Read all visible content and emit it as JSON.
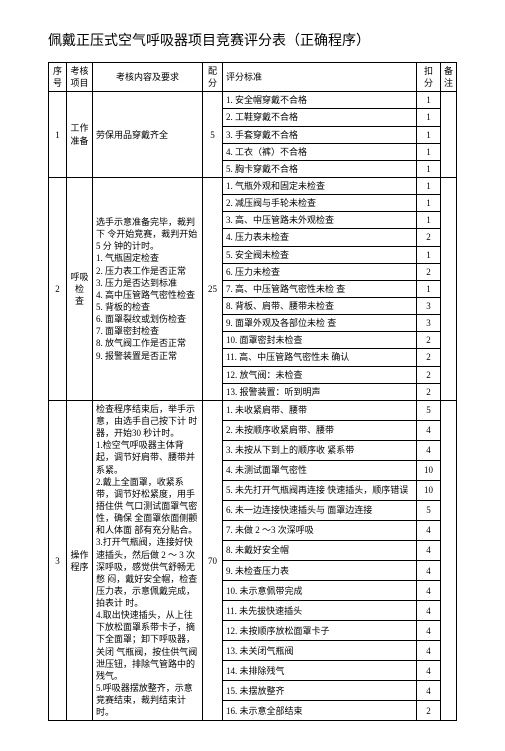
{
  "title": "佩戴正压式空气呼吸器项目竞赛评分表（正确程序）",
  "headers": {
    "seq": "序号",
    "item": "考核 项目",
    "req": "考核内容及要求",
    "score": "配 分",
    "std": "评分标准",
    "ded": "扣 分",
    "note": "备 注"
  },
  "section1": {
    "seq": "1",
    "item": "工作 准备",
    "req": "劳保用品穿戴齐全",
    "score": "5",
    "rows": [
      {
        "std": "1. 安全帽穿戴不合格",
        "ded": "1"
      },
      {
        "std": "2. 工鞋穿戴不合格",
        "ded": "1"
      },
      {
        "std": "3. 手套穿戴不合格",
        "ded": "1"
      },
      {
        "std": "4. 工衣（裤）不合格",
        "ded": "1"
      },
      {
        "std": "5. 胸卡穿戴不合格",
        "ded": "1"
      }
    ]
  },
  "section2": {
    "seq": "2",
    "item": "呼吸 检 查",
    "req": "选手示意准备完毕，裁判下 令开始竞赛，裁判开始 5 分 钟的计时。\n1. 气瓶固定检查\n2. 压力表工作是否正常\n3. 压力是否达到标准\n4. 高中压管路气密性检查\n5. 背板的检查\n6. 面罩裂纹或划伤检查\n7. 面罩密封检查\n8. 放气阀工作是否正常\n9. 报警装置是否正常",
    "score": "25",
    "rows": [
      {
        "std": "1. 气瓶外观和固定未检查",
        "ded": "1"
      },
      {
        "std": "2. 减压阀与手轮未检查",
        "ded": "1"
      },
      {
        "std": "3. 高、中压管路未外观检查",
        "ded": "1"
      },
      {
        "std": "4. 压力表未检查",
        "ded": "2"
      },
      {
        "std": "5. 安全阀未检查",
        "ded": "1"
      },
      {
        "std": "6. 压力未检查",
        "ded": "2"
      },
      {
        "std": "7. 高、中压管路气密性未检 查",
        "ded": "1"
      },
      {
        "std": "8. 背板、肩带、腰带未检查",
        "ded": "3"
      },
      {
        "std": "9. 面罩外观及各部位未检 查",
        "ded": "3"
      },
      {
        "std": "10. 面罩密封未检查",
        "ded": "2"
      },
      {
        "std": "11. 高、中压管路气密性未 确认",
        "ded": "2"
      },
      {
        "std": "12. 放气阀：未检查",
        "ded": "2"
      },
      {
        "std": "13. 报警装置：听到明声",
        "ded": "2"
      }
    ]
  },
  "section3": {
    "seq": "3",
    "item": "操作程序",
    "req": "检查程序结束后，举手示 意，由选手自己按下计 时器，开始30 秒计时。\n1.检空气呼吸器主体背起，调节好肩带、腰带并系紧。\n2.戴上全面罩，收紧系带，调节好松紧度，用手捂住供 气口测试面罩气密性，确保 全面罩依面侧颧和人体面 部有充分贴合。\n3.打开气瓶阀，连接好快 速插头，然后做 2 ～ 3 次深呼吸，感觉供气舒畅无憋 闷，戴好安全帽，检查压力表，示意佩戴完成，拍表计 时。\n4.取出快速插头，从上往 下放松面罩系带卡子，摘下全面罩；卸下呼吸器，关闭 气瓶阀，按住供气阀泄压钮，排除气管路中的残气。\n5.呼吸器摆放整齐，示意 竞赛结束，裁判结束计时。",
    "score": "70",
    "rows": [
      {
        "std": "1. 未收紧肩带、腰带",
        "ded": "5"
      },
      {
        "std": "2. 未按顺序收紧肩带、腰带",
        "ded": "4"
      },
      {
        "std": "3. 未按从下到上的顺序收 紧系带",
        "ded": "4"
      },
      {
        "std": "4. 未测试面罩气密性",
        "ded": "10"
      },
      {
        "std": "5. 未先打开气瓶阀再连接 快速插头，顺序错误",
        "ded": "10"
      },
      {
        "std": "6. 未一边连接快速插头与 面罩边连接",
        "ded": "5"
      },
      {
        "std": "7. 未做 2 ～3 次深呼吸",
        "ded": "4"
      },
      {
        "std": "8. 未戴好安全帽",
        "ded": "4"
      },
      {
        "std": "9. 未检查压力表",
        "ded": "4"
      },
      {
        "std": "10. 未示意佩带完成",
        "ded": "4"
      },
      {
        "std": "11. 未先拔快速插头",
        "ded": "4"
      },
      {
        "std": "12. 未按顺序放松面罩卡子",
        "ded": "4"
      },
      {
        "std": "13. 未关闭气瓶阀",
        "ded": "4"
      },
      {
        "std": "14. 未排除残气",
        "ded": "4"
      },
      {
        "std": "15. 未摆放整齐",
        "ded": "4"
      },
      {
        "std": "16. 未示意全部结束",
        "ded": "2"
      }
    ]
  }
}
